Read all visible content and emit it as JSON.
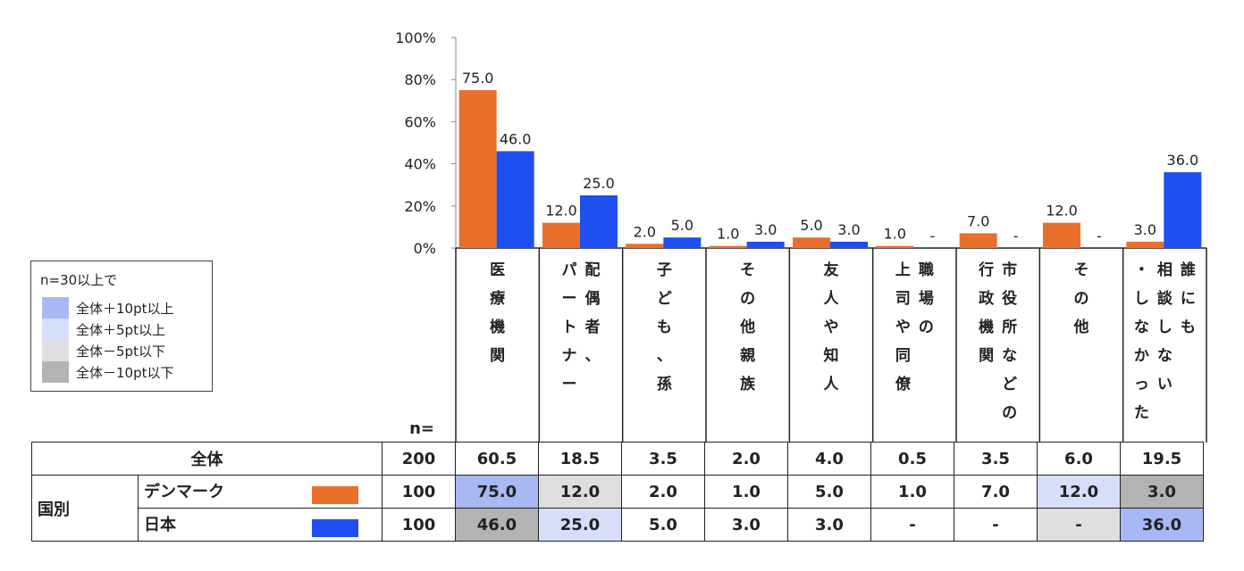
{
  "chart_data": {
    "type": "bar",
    "categories": [
      [
        "医療機関"
      ],
      [
        "配偶者、",
        "パートナー"
      ],
      [
        "子ども、孫"
      ],
      [
        "その他親族"
      ],
      [
        "友人や知人"
      ],
      [
        "職場の",
        "上司や同僚"
      ],
      [
        "市役所などの",
        "行政機関"
      ],
      [
        "その他"
      ],
      [
        "誰にも",
        "相談しない",
        "・しなかった"
      ]
    ],
    "series": [
      {
        "name": "デンマーク",
        "color": "#ea6f2d",
        "values": [
          75.0,
          12.0,
          2.0,
          1.0,
          5.0,
          1.0,
          7.0,
          12.0,
          3.0
        ],
        "labels": [
          "75.0",
          "12.0",
          "2.0",
          "1.0",
          "5.0",
          "1.0",
          "7.0",
          "12.0",
          "3.0"
        ]
      },
      {
        "name": "日本",
        "color": "#1e4ff0",
        "values": [
          46.0,
          25.0,
          5.0,
          3.0,
          3.0,
          0,
          0,
          0,
          36.0
        ],
        "labels": [
          "46.0",
          "25.0",
          "5.0",
          "3.0",
          "3.0",
          "-",
          "-",
          "-",
          "36.0"
        ]
      }
    ],
    "ylim": [
      0,
      100
    ],
    "yticks": [
      "0%",
      "20%",
      "40%",
      "60%",
      "80%",
      "100%"
    ]
  },
  "legend": {
    "title": "n=30以上で",
    "items": [
      {
        "label": "全体＋10pt以上",
        "color": "#a8b8f4"
      },
      {
        "label": "全体＋5pt以上",
        "color": "#d6defa"
      },
      {
        "label": "全体－5pt以下",
        "color": "#dedede"
      },
      {
        "label": "全体－10pt以下",
        "color": "#b3b3b3"
      }
    ]
  },
  "table": {
    "n_header": "n=",
    "total_row": {
      "label": "全体",
      "n": "200",
      "values": [
        "60.5",
        "18.5",
        "3.5",
        "2.0",
        "4.0",
        "0.5",
        "3.5",
        "6.0",
        "19.5"
      ]
    },
    "group_label": "国別",
    "rows": [
      {
        "label": "デンマーク",
        "n": "100",
        "values": [
          "75.0",
          "12.0",
          "2.0",
          "1.0",
          "5.0",
          "1.0",
          "7.0",
          "12.0",
          "3.0"
        ],
        "highlights": [
          "#a8b8f4",
          "#dedede",
          "",
          "",
          "",
          "",
          "",
          "#d6defa",
          "#b3b3b3"
        ]
      },
      {
        "label": "日本",
        "n": "100",
        "values": [
          "46.0",
          "25.0",
          "5.0",
          "3.0",
          "3.0",
          "-",
          "-",
          "-",
          "36.0"
        ],
        "highlights": [
          "#b3b3b3",
          "#d6defa",
          "",
          "",
          "",
          "",
          "",
          "#dedede",
          "#a8b8f4"
        ]
      }
    ]
  }
}
